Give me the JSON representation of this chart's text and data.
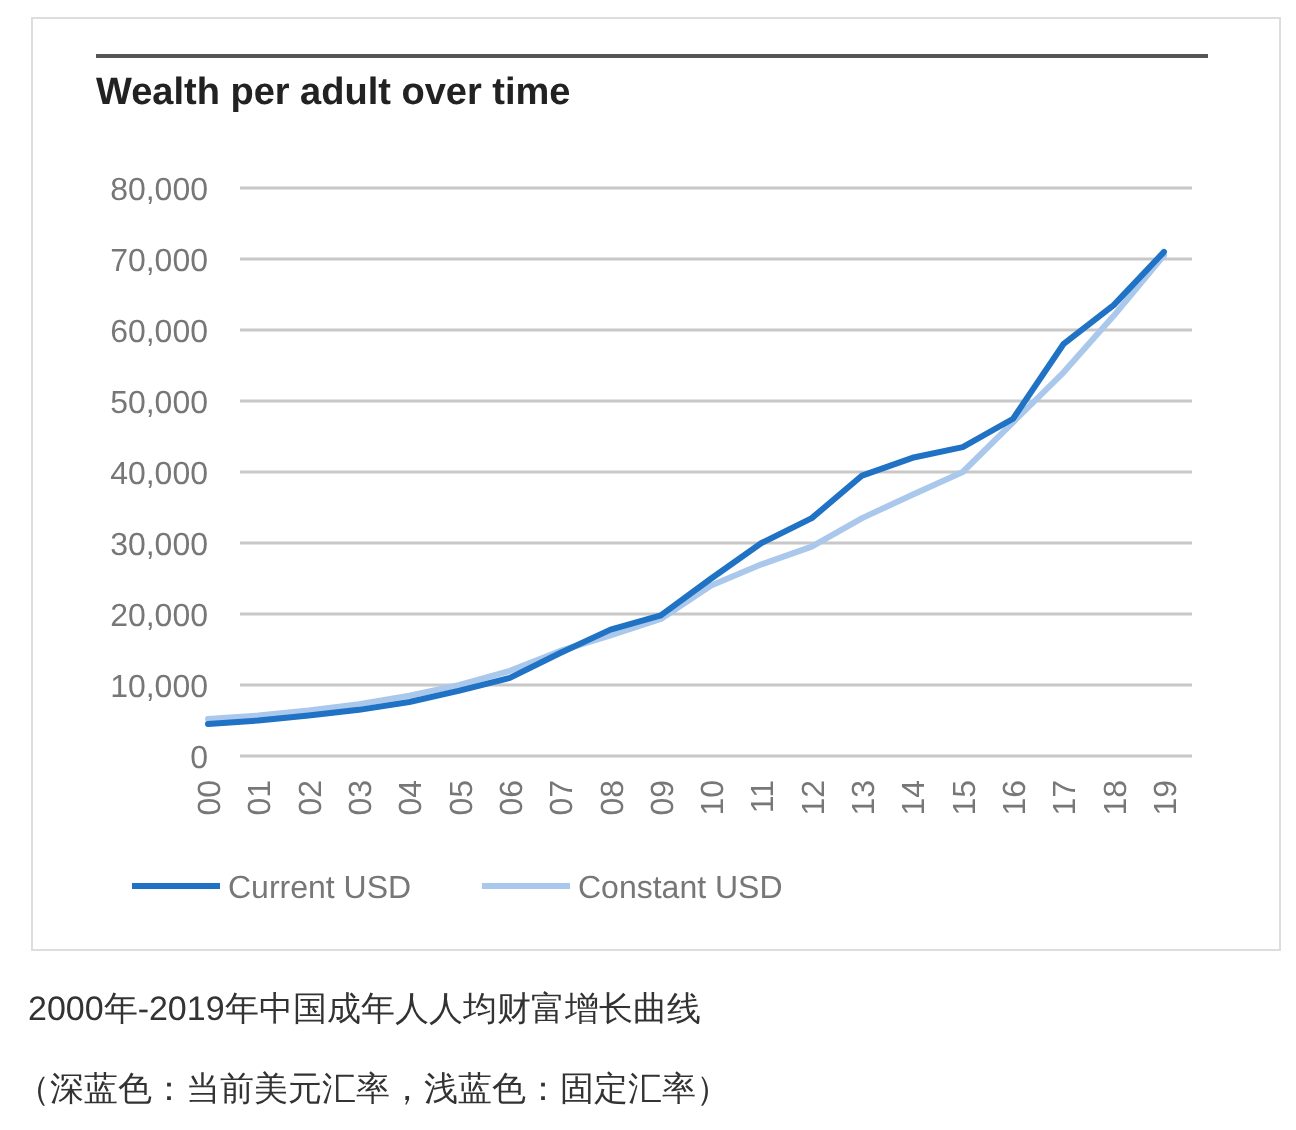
{
  "chart_data": {
    "type": "line",
    "title": "Wealth per adult over time",
    "categories": [
      "00",
      "01",
      "02",
      "03",
      "04",
      "05",
      "06",
      "07",
      "08",
      "09",
      "10",
      "11",
      "12",
      "13",
      "14",
      "15",
      "16",
      "17",
      "18",
      "19"
    ],
    "series": [
      {
        "name": "Current USD",
        "color": "#1f72c4",
        "values": [
          4500,
          5000,
          5700,
          6500,
          7600,
          9200,
          11000,
          14500,
          17800,
          19800,
          25000,
          30000,
          33500,
          39500,
          42000,
          43500,
          47500,
          58000,
          63500,
          71000
        ]
      },
      {
        "name": "Constant USD",
        "color": "#a9c8ec",
        "values": [
          5200,
          5700,
          6400,
          7300,
          8500,
          10000,
          12000,
          14800,
          17000,
          19300,
          24000,
          27000,
          29500,
          33500,
          36800,
          40000,
          47000,
          54000,
          62000,
          70500
        ]
      }
    ],
    "ylim": [
      0,
      80000
    ],
    "yticks": [
      {
        "value": 0,
        "label": "0"
      },
      {
        "value": 10000,
        "label": "10,000"
      },
      {
        "value": 20000,
        "label": "20,000"
      },
      {
        "value": 30000,
        "label": "30,000"
      },
      {
        "value": 40000,
        "label": "40,000"
      },
      {
        "value": 50000,
        "label": "50,000"
      },
      {
        "value": 60000,
        "label": "60,000"
      },
      {
        "value": 70000,
        "label": "70,000"
      },
      {
        "value": 80000,
        "label": "80,000"
      }
    ],
    "grid": "y",
    "legend": "bottom",
    "marker": "none",
    "line_style": "solid",
    "annotations": [
      "2000年-2019年中国成年人人均财富增长曲线",
      "（深蓝色：当前美元汇率，浅蓝色：固定汇率）"
    ]
  }
}
